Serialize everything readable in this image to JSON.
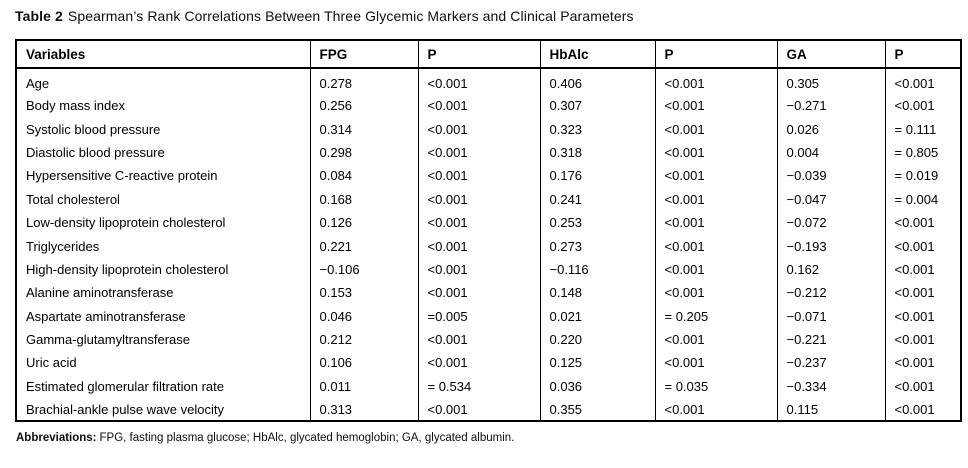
{
  "title": {
    "label": "Table 2",
    "text": "Spearman’s Rank Correlations Between Three Glycemic Markers and Clinical Parameters"
  },
  "table": {
    "columns": [
      "Variables",
      "FPG",
      "P",
      "HbAlc",
      "P",
      "GA",
      "P"
    ],
    "rows": [
      {
        "variable": "Age",
        "values": [
          "0.278",
          "<0.001",
          "0.406",
          "<0.001",
          "0.305",
          "<0.001"
        ]
      },
      {
        "variable": "Body mass index",
        "values": [
          "0.256",
          "<0.001",
          "0.307",
          "<0.001",
          "−0.271",
          "<0.001"
        ]
      },
      {
        "variable": "Systolic blood pressure",
        "values": [
          "0.314",
          "<0.001",
          "0.323",
          "<0.001",
          "0.026",
          "= 0.111"
        ]
      },
      {
        "variable": "Diastolic blood pressure",
        "values": [
          "0.298",
          "<0.001",
          "0.318",
          "<0.001",
          "0.004",
          "= 0.805"
        ]
      },
      {
        "variable": "Hypersensitive C-reactive protein",
        "values": [
          "0.084",
          "<0.001",
          "0.176",
          "<0.001",
          "−0.039",
          "= 0.019"
        ]
      },
      {
        "variable": "Total cholesterol",
        "values": [
          "0.168",
          "<0.001",
          "0.241",
          "<0.001",
          "−0.047",
          "= 0.004"
        ]
      },
      {
        "variable": "Low-density lipoprotein cholesterol",
        "values": [
          "0.126",
          "<0.001",
          "0.253",
          "<0.001",
          "−0.072",
          "<0.001"
        ]
      },
      {
        "variable": "Triglycerides",
        "values": [
          "0.221",
          "<0.001",
          "0.273",
          "<0.001",
          "−0.193",
          "<0.001"
        ]
      },
      {
        "variable": "High-density lipoprotein cholesterol",
        "values": [
          "−0.106",
          "<0.001",
          "−0.116",
          "<0.001",
          "0.162",
          "<0.001"
        ]
      },
      {
        "variable": "Alanine aminotransferase",
        "values": [
          "0.153",
          "<0.001",
          "0.148",
          "<0.001",
          "−0.212",
          "<0.001"
        ]
      },
      {
        "variable": "Aspartate aminotransferase",
        "values": [
          "0.046",
          "=0.005",
          "0.021",
          "= 0.205",
          "−0.071",
          "<0.001"
        ]
      },
      {
        "variable": "Gamma-glutamyltransferase",
        "values": [
          "0.212",
          "<0.001",
          "0.220",
          "<0.001",
          "−0.221",
          "<0.001"
        ]
      },
      {
        "variable": "Uric acid",
        "values": [
          "0.106",
          "<0.001",
          "0.125",
          "<0.001",
          "−0.237",
          "<0.001"
        ]
      },
      {
        "variable": "Estimated glomerular filtration rate",
        "values": [
          "0.011",
          "= 0.534",
          "0.036",
          "= 0.035",
          "−0.334",
          "<0.001"
        ]
      },
      {
        "variable": "Brachial-ankle pulse wave velocity",
        "values": [
          "0.313",
          "<0.001",
          "0.355",
          "<0.001",
          "0.115",
          "<0.001"
        ]
      }
    ]
  },
  "footnote": {
    "label": "Abbreviations:",
    "text": "FPG, fasting plasma glucose; HbAlc, glycated hemoglobin; GA, glycated albumin."
  },
  "colors": {
    "text": "#0d0d14",
    "border": "#000000",
    "background": "#ffffff"
  }
}
